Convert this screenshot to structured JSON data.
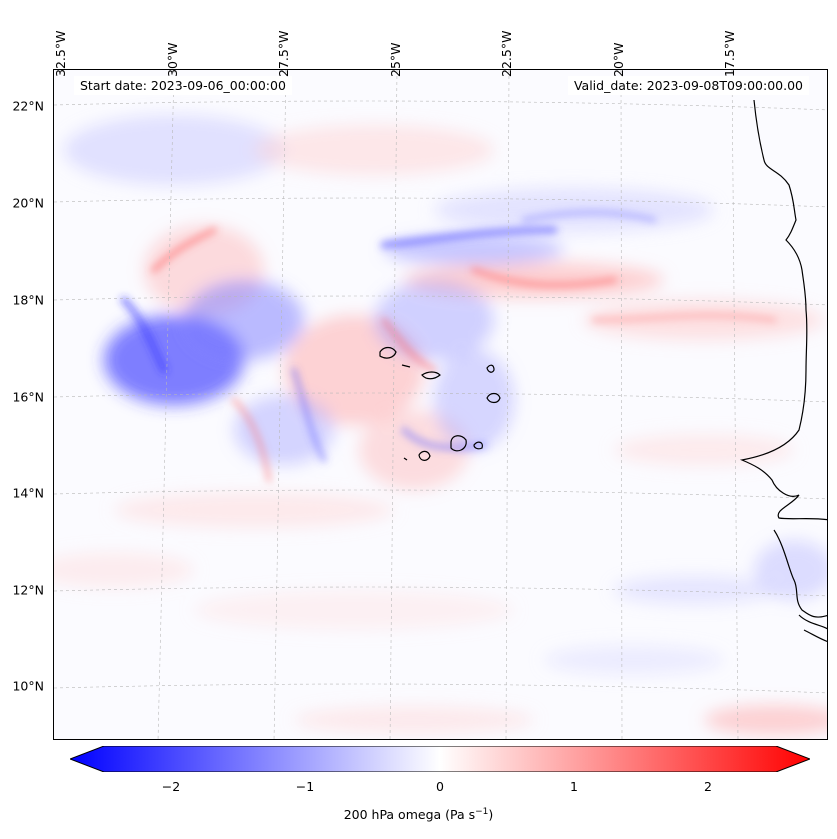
{
  "map": {
    "start_date": "Start date: 2023-09-06_00:00:00",
    "valid_date": "Valid_date: 2023-09-08T09:00:00.00",
    "lat_labels": [
      "22°N",
      "20°N",
      "18°N",
      "16°N",
      "14°N",
      "12°N",
      "10°N"
    ],
    "lon_labels": [
      "32.5°W",
      "30°W",
      "27.5°W",
      "25°W",
      "22.5°W",
      "20°W",
      "17.5°W"
    ],
    "field_colors": {
      "negative": "#0000ff",
      "zero": "#ffffff",
      "positive": "#ff0000"
    }
  },
  "colorbar": {
    "ticks": [
      "−2",
      "−1",
      "0",
      "1",
      "2"
    ],
    "label_main": "200 hPa omega (Pa s",
    "label_sup": "−1",
    "label_end": ")",
    "range": [
      -2.6,
      2.6
    ]
  }
}
